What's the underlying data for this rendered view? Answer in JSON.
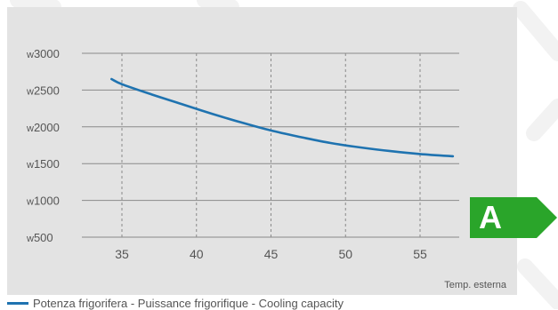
{
  "chart_data": {
    "type": "line",
    "title": "",
    "xlabel": "Temp. esterna",
    "ylabel": "",
    "x_ticks": [
      35,
      40,
      45,
      50,
      55
    ],
    "y_ticks": [
      {
        "value": 500,
        "unit": "w",
        "label": "500"
      },
      {
        "value": 1000,
        "unit": "w",
        "label": "1000"
      },
      {
        "value": 1500,
        "unit": "w",
        "label": "1500"
      },
      {
        "value": 2000,
        "unit": "w",
        "label": "2000"
      },
      {
        "value": 2500,
        "unit": "w",
        "label": "2500"
      },
      {
        "value": 3000,
        "unit": "w",
        "label": "3000"
      }
    ],
    "xlim": [
      32,
      58
    ],
    "ylim": [
      500,
      3000
    ],
    "grid": true,
    "series": [
      {
        "name": "Potenza frigorifera - Puissance frigorifique - Cooling capacity",
        "color": "#1f73b0",
        "x": [
          34.3,
          35,
          37,
          39,
          41,
          43,
          45,
          47,
          49,
          51,
          53,
          55,
          57.2
        ],
        "y": [
          2650,
          2580,
          2440,
          2310,
          2180,
          2060,
          1950,
          1860,
          1780,
          1720,
          1670,
          1630,
          1600
        ]
      }
    ]
  },
  "badge": {
    "letter": "A",
    "color": "#2aa52a"
  },
  "legend": {
    "label": "Potenza frigorifera - Puissance frigorifique - Cooling capacity",
    "color": "#1f73b0"
  }
}
